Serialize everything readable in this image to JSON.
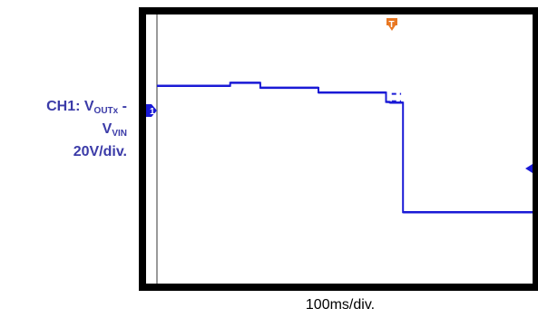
{
  "chart_data": {
    "type": "line",
    "channel_label": {
      "prefix": "CH1: V",
      "sub1": "OUTx",
      "mid": " -",
      "v": "V",
      "sub2": "VIN",
      "scale": "20V/div."
    },
    "xlabel": "100ms/div.",
    "channel_marker": "1",
    "trigger_marker": "T",
    "colors": {
      "trace": "#1a1ad6",
      "trigger": "#e87722",
      "frame": "#000000",
      "grid_line": "#9a9a9a"
    },
    "x_unit": "ms",
    "y_unit": "div above bottom",
    "x_range": [
      0,
      1000
    ],
    "y_range": [
      0,
      8
    ],
    "series": [
      {
        "segments": [
          {
            "x": [
              0,
              195
            ],
            "y": 5.88
          },
          {
            "x": [
              195,
              275
            ],
            "y": 5.97
          },
          {
            "x": [
              275,
              430
            ],
            "y": 5.82
          },
          {
            "x": [
              430,
              610
            ],
            "y": 5.68
          },
          {
            "x": [
              610,
              620
            ],
            "y": 5.4
          },
          {
            "x": [
              620,
              655
            ],
            "y": 5.38
          },
          {
            "x": [
              655,
              1000
            ],
            "y": 2.12
          }
        ],
        "dashed_overlay": [
          {
            "x": [
              625,
              650
            ],
            "y": 5.64
          },
          {
            "x": [
              625,
              650
            ],
            "y": 5.42
          }
        ]
      }
    ]
  }
}
